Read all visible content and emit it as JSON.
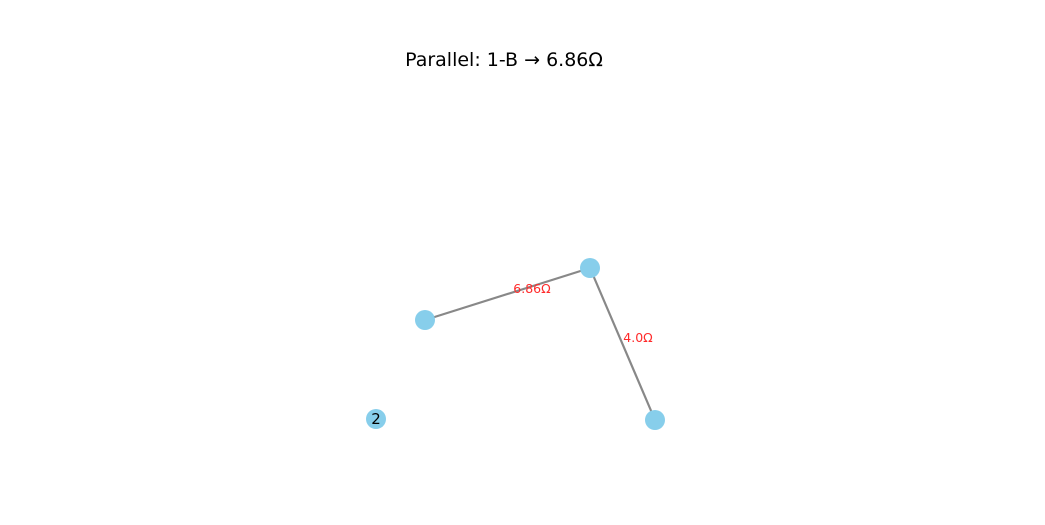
{
  "title": "Parallel: 1-B → 6.86Ω",
  "colors": {
    "node": "#87ceeb",
    "edge": "#888888",
    "edge_label": "#ff2a2a",
    "text": "#000000"
  },
  "nodes": [
    {
      "id": "n-left",
      "label": ""
    },
    {
      "id": "n-top",
      "label": ""
    },
    {
      "id": "n-bottom-right",
      "label": ""
    },
    {
      "id": "n-2",
      "label": "2"
    }
  ],
  "edges": [
    {
      "from": "n-left",
      "to": "n-top",
      "label": "6.86Ω"
    },
    {
      "from": "n-top",
      "to": "n-bottom-right",
      "label": "4.0Ω"
    }
  ]
}
